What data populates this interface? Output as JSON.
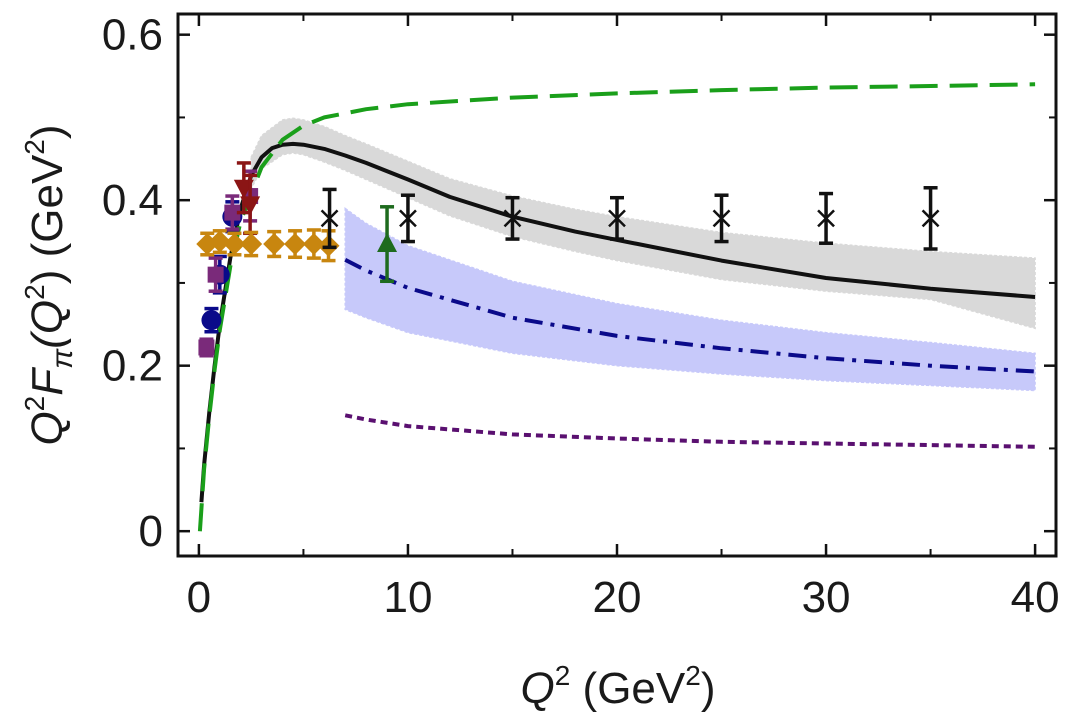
{
  "chart_data": {
    "type": "line",
    "x_label": {
      "base": "Q",
      "sup": "2",
      "unit_open": " (GeV",
      "unit_sup": "2",
      "unit_close": ")"
    },
    "y_label": {
      "q": "Q",
      "q_sup": "2",
      "f": "F",
      "pi": "π",
      "arg_open": "(Q",
      "arg_sup": "2",
      "arg_close": ")",
      "unit_open": " (GeV",
      "unit_sup": "2",
      "unit_close": ")"
    },
    "xlim": [
      -1,
      41
    ],
    "ylim": [
      -0.03,
      0.625
    ],
    "x_ticks": [
      0,
      10,
      20,
      30,
      40
    ],
    "x_tick_labels": [
      "0",
      "10",
      "20",
      "30",
      "40"
    ],
    "y_ticks": [
      0,
      0.2,
      0.4,
      0.6
    ],
    "y_tick_labels": [
      "0",
      "0.2",
      "0.4",
      "0.6"
    ],
    "colors": {
      "black": "#111111",
      "green": "#1a9f1a",
      "navy": "#0a0a8a",
      "purple": "#5a1070",
      "orange": "#c8860f",
      "darkred": "#8b1515",
      "magenta": "#7a2a7a",
      "darkgreen": "#1e6b1e",
      "gray_band": "#d9d9d9",
      "blue_band": "#c7c9fa"
    },
    "bands": [
      {
        "name": "gray-band",
        "color": "#d9d9d9",
        "x": [
          2.5,
          3,
          4,
          4.5,
          5,
          6,
          7,
          8,
          10,
          12,
          15,
          18,
          20,
          25,
          30,
          35,
          40
        ],
        "upper": [
          0.452,
          0.478,
          0.497,
          0.499,
          0.497,
          0.489,
          0.478,
          0.468,
          0.447,
          0.426,
          0.405,
          0.389,
          0.38,
          0.361,
          0.348,
          0.338,
          0.33
        ],
        "lower": [
          0.414,
          0.438,
          0.455,
          0.457,
          0.455,
          0.446,
          0.436,
          0.425,
          0.403,
          0.381,
          0.356,
          0.338,
          0.327,
          0.304,
          0.29,
          0.28,
          0.245
        ]
      },
      {
        "name": "blue-band",
        "color": "#c7c9fa",
        "x": [
          7,
          8,
          10,
          15,
          20,
          25,
          30,
          35,
          40
        ],
        "upper": [
          0.39,
          0.372,
          0.345,
          0.302,
          0.275,
          0.255,
          0.24,
          0.228,
          0.215
        ],
        "lower": [
          0.268,
          0.258,
          0.24,
          0.215,
          0.2,
          0.19,
          0.182,
          0.176,
          0.17
        ]
      }
    ],
    "series": [
      {
        "name": "black-solid",
        "style": "solid",
        "color": "#111111",
        "x": [
          0.12,
          0.25,
          0.5,
          0.75,
          1,
          1.5,
          2,
          2.5,
          3,
          3.5,
          4,
          4.5,
          5,
          6,
          7,
          8,
          10,
          12,
          15,
          18,
          20,
          25,
          30,
          35,
          40
        ],
        "y": [
          0.035,
          0.08,
          0.145,
          0.2,
          0.25,
          0.33,
          0.39,
          0.43,
          0.452,
          0.463,
          0.467,
          0.468,
          0.467,
          0.462,
          0.454,
          0.445,
          0.425,
          0.404,
          0.38,
          0.362,
          0.352,
          0.327,
          0.306,
          0.293,
          0.283
        ]
      },
      {
        "name": "green-dashed",
        "style": "dashed",
        "color": "#1a9f1a",
        "x": [
          0.05,
          0.25,
          0.5,
          0.75,
          1,
          1.5,
          2,
          3,
          4,
          5,
          6,
          8,
          10,
          15,
          20,
          25,
          30,
          35,
          40
        ],
        "y": [
          0.0,
          0.075,
          0.14,
          0.195,
          0.243,
          0.32,
          0.375,
          0.44,
          0.473,
          0.49,
          0.5,
          0.51,
          0.516,
          0.524,
          0.529,
          0.533,
          0.536,
          0.538,
          0.54
        ]
      },
      {
        "name": "blue-dashdot",
        "style": "dashdot",
        "color": "#0a0a8a",
        "x": [
          7,
          8,
          10,
          15,
          20,
          25,
          30,
          35,
          40
        ],
        "y": [
          0.328,
          0.315,
          0.294,
          0.258,
          0.236,
          0.221,
          0.209,
          0.2,
          0.193
        ]
      },
      {
        "name": "purple-dotted",
        "style": "dotted",
        "color": "#5a1070",
        "x": [
          7,
          8,
          10,
          15,
          20,
          25,
          30,
          35,
          40
        ],
        "y": [
          0.14,
          0.135,
          0.127,
          0.117,
          0.112,
          0.108,
          0.106,
          0.104,
          0.102
        ]
      }
    ],
    "markers": [
      {
        "name": "navy-circles",
        "shape": "circle",
        "color": "#0a0a8a",
        "points": [
          {
            "x": 0.6,
            "y": 0.255,
            "err": 0.014
          },
          {
            "x": 1.0,
            "y": 0.31,
            "err": 0.022
          },
          {
            "x": 1.6,
            "y": 0.38,
            "err": 0.018
          }
        ]
      },
      {
        "name": "purple-squares",
        "shape": "square",
        "color": "#7a2a7a",
        "points": [
          {
            "x": 0.36,
            "y": 0.222,
            "err": 0.01
          },
          {
            "x": 0.8,
            "y": 0.31,
            "err": 0.02
          },
          {
            "x": 1.6,
            "y": 0.385,
            "err": 0.02
          },
          {
            "x": 2.45,
            "y": 0.405,
            "err": 0.03
          }
        ]
      },
      {
        "name": "darkred-triangles",
        "shape": "triangle-down",
        "color": "#8b1515",
        "points": [
          {
            "x": 2.15,
            "y": 0.415,
            "err": 0.03
          },
          {
            "x": 2.45,
            "y": 0.395,
            "err": 0.035
          }
        ]
      },
      {
        "name": "orange-diamonds",
        "shape": "diamond",
        "color": "#c8860f",
        "points": [
          {
            "x": 0.4,
            "y": 0.347,
            "err": 0.013
          },
          {
            "x": 1.0,
            "y": 0.35,
            "err": 0.013
          },
          {
            "x": 1.7,
            "y": 0.347,
            "err": 0.013
          },
          {
            "x": 2.5,
            "y": 0.347,
            "err": 0.014
          },
          {
            "x": 3.6,
            "y": 0.347,
            "err": 0.015
          },
          {
            "x": 4.6,
            "y": 0.347,
            "err": 0.016
          },
          {
            "x": 5.5,
            "y": 0.347,
            "err": 0.017
          },
          {
            "x": 6.2,
            "y": 0.345,
            "err": 0.018
          }
        ]
      },
      {
        "name": "green-triangle",
        "shape": "triangle-up",
        "color": "#1e6b1e",
        "points": [
          {
            "x": 9.0,
            "y": 0.347,
            "err": 0.045
          }
        ]
      },
      {
        "name": "black-crosses",
        "shape": "cross",
        "color": "#111111",
        "points": [
          {
            "x": 6.25,
            "y": 0.378,
            "err": 0.035
          },
          {
            "x": 10,
            "y": 0.378,
            "err": 0.028
          },
          {
            "x": 15,
            "y": 0.378,
            "err": 0.025
          },
          {
            "x": 20,
            "y": 0.378,
            "err": 0.025
          },
          {
            "x": 25,
            "y": 0.378,
            "err": 0.028
          },
          {
            "x": 30,
            "y": 0.378,
            "err": 0.03
          },
          {
            "x": 35,
            "y": 0.378,
            "err": 0.037
          }
        ]
      }
    ]
  }
}
